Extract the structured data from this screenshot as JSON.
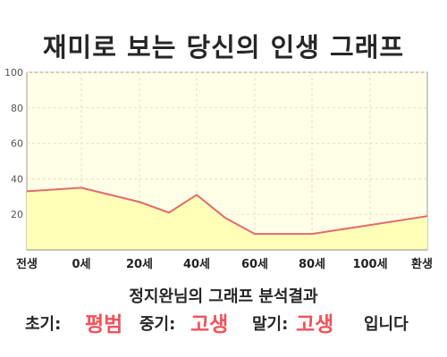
{
  "title": "재미로 보는 당신의 인생 그래프",
  "chart_data": {
    "type": "area",
    "x_labels": [
      "전생",
      "0세",
      "20세",
      "40세",
      "60세",
      "80세",
      "100세",
      "환생"
    ],
    "ylim": [
      0,
      100
    ],
    "y_ticks": [
      100,
      80,
      60,
      40,
      20
    ],
    "grid": true,
    "points": [
      {
        "x": "전생",
        "y": 33
      },
      {
        "x": "0세",
        "y": 35
      },
      {
        "x": "20세",
        "y": 27
      },
      {
        "x": "30세",
        "y": 21
      },
      {
        "x": "40세",
        "y": 31
      },
      {
        "x": "50세",
        "y": 18
      },
      {
        "x": "60세",
        "y": 9
      },
      {
        "x": "80세",
        "y": 9
      },
      {
        "x": "100세",
        "y": 14
      },
      {
        "x": "환생",
        "y": 19
      }
    ],
    "colors": {
      "line": "#e06b6b",
      "fill": "#ffffb8",
      "plot_bg": "#fffee6",
      "grid": "#e6e0c4"
    }
  },
  "summary": {
    "title": "정지완님의 그래프 분석결과",
    "early_label": "초기:",
    "early_value": "평범",
    "middle_label": "중기:",
    "middle_value": "고생",
    "late_label": "말기:",
    "late_value": "고생",
    "ending": "입니다"
  }
}
